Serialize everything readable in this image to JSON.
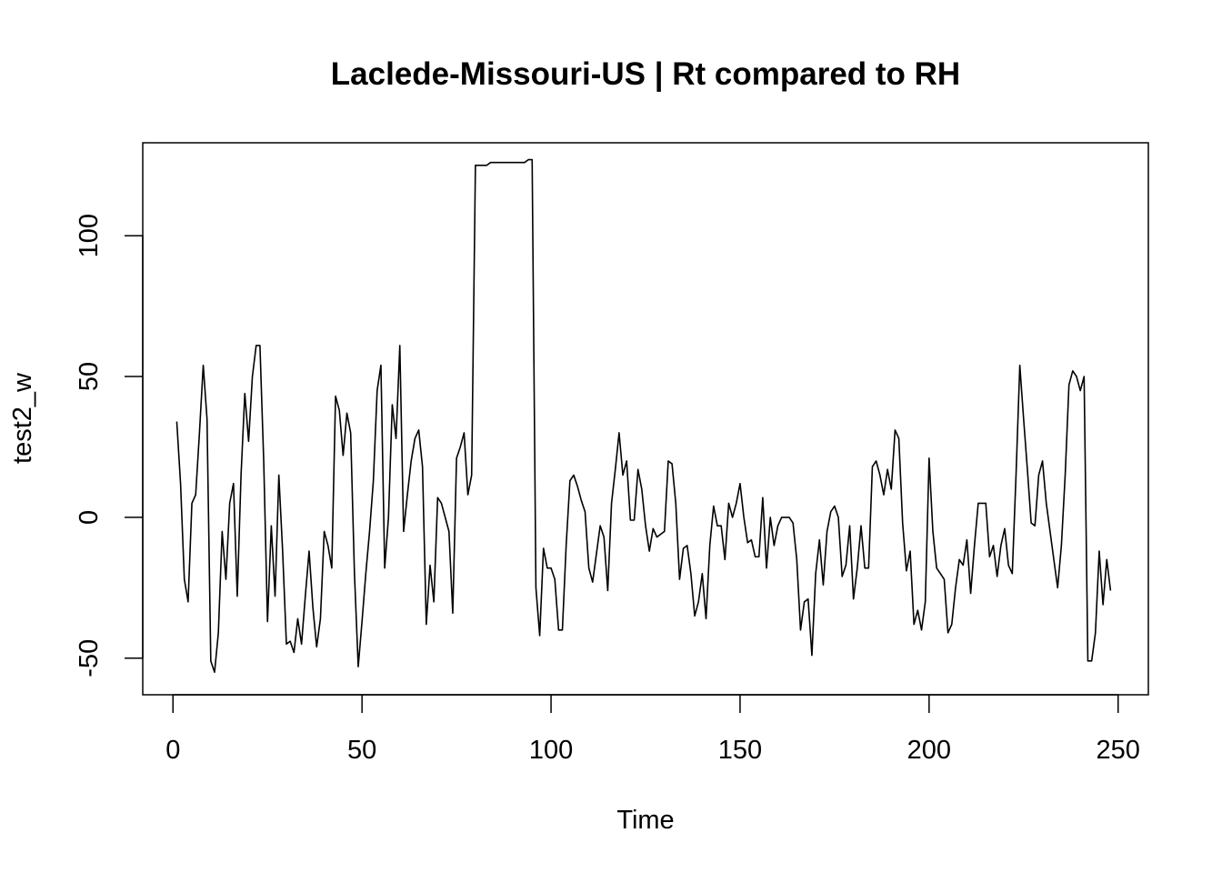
{
  "chart_data": {
    "type": "line",
    "title": "Laclede-Missouri-US | Rt compared to RH",
    "xlabel": "Time",
    "ylabel": "test2_w",
    "xlim": [
      -8,
      258
    ],
    "ylim": [
      -63,
      133
    ],
    "x_ticks": [
      0,
      50,
      100,
      150,
      200,
      250
    ],
    "y_ticks": [
      -50,
      0,
      50,
      100
    ],
    "grid": false,
    "legend": "none",
    "line_color": "#000000",
    "series": [
      {
        "x_start": 1,
        "values": [
          34,
          12,
          -22,
          -30,
          5,
          8,
          30,
          54,
          35,
          -51,
          -55,
          -41,
          -5,
          -22,
          5,
          12,
          -28,
          15,
          44,
          27,
          50,
          61,
          61,
          20,
          -37,
          -3,
          -28,
          15,
          -12,
          -45,
          -44,
          -48,
          -36,
          -45,
          -28,
          -12,
          -32,
          -46,
          -36,
          -5,
          -10,
          -18,
          43,
          38,
          22,
          37,
          30,
          -20,
          -53,
          -37,
          -20,
          -5,
          13,
          45,
          54,
          -18,
          0,
          40,
          28,
          61,
          -5,
          8,
          20,
          28,
          31,
          18,
          -38,
          -17,
          -30,
          7,
          5,
          0,
          -5,
          -34,
          21,
          25,
          30,
          8,
          15,
          125,
          125,
          125,
          125,
          126,
          126,
          126,
          126,
          126,
          126,
          126,
          126,
          126,
          126,
          127,
          127,
          -25,
          -42,
          -11,
          -18,
          -18,
          -22,
          -40,
          -40,
          -10,
          13,
          15,
          11,
          6,
          2,
          -18,
          -23,
          -13,
          -3,
          -7,
          -26,
          5,
          17,
          30,
          15,
          20,
          -1,
          -1,
          17,
          10,
          -3,
          -12,
          -4,
          -7,
          -6,
          -5,
          20,
          19,
          5,
          -22,
          -11,
          -10,
          -20,
          -35,
          -30,
          -20,
          -36,
          -10,
          4,
          -3,
          -3,
          -15,
          5,
          0,
          5,
          12,
          0,
          -9,
          -8,
          -14,
          -14,
          7,
          -18,
          0,
          -10,
          -3,
          0,
          0,
          0,
          -2,
          -15,
          -40,
          -30,
          -29,
          -49,
          -20,
          -8,
          -24,
          -5,
          2,
          4,
          0,
          -21,
          -17,
          -3,
          -29,
          -18,
          -3,
          -18,
          -18,
          18,
          20,
          15,
          8,
          17,
          10,
          31,
          28,
          -2,
          -19,
          -12,
          -38,
          -33,
          -40,
          -30,
          21,
          -5,
          -18,
          -20,
          -22,
          -41,
          -38,
          -25,
          -15,
          -17,
          -8,
          -27,
          -10,
          5,
          5,
          5,
          -14,
          -10,
          -21,
          -10,
          -4,
          -17,
          -20,
          15,
          54,
          35,
          17,
          -2,
          -3,
          15,
          20,
          5,
          -5,
          -15,
          -25,
          -10,
          15,
          47,
          52,
          50,
          45,
          50,
          -51,
          -51,
          -41,
          -12,
          -31,
          -15,
          -26
        ]
      }
    ]
  }
}
